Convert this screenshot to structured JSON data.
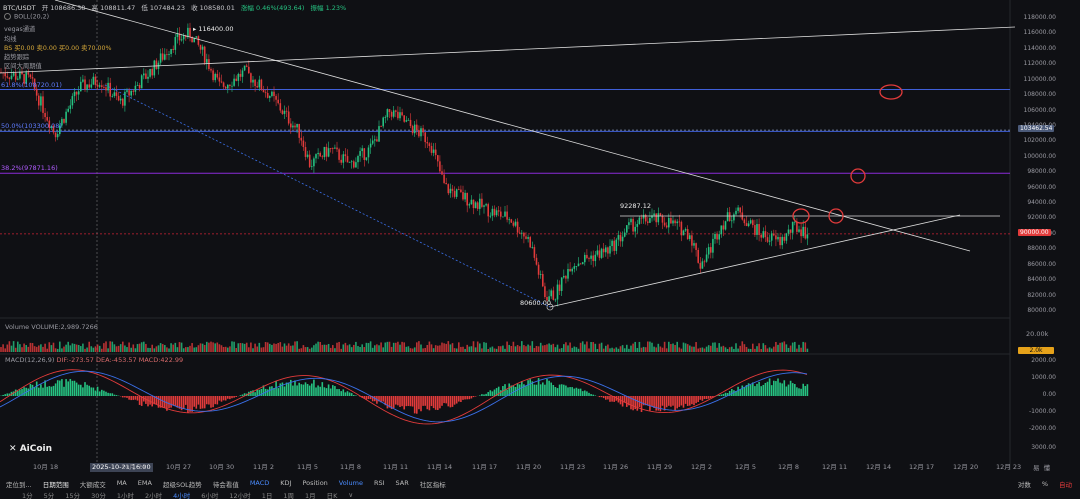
{
  "header": {
    "symbol": "BTC/USDT",
    "open": "开 108686.38",
    "high": "高 108811.47",
    "low": "低 107484.23",
    "close": "收 108580.01",
    "change": "涨幅 0.46%(493.64)",
    "amplitude": "振幅 1.23%"
  },
  "indicators": [
    "BOLL(20,2)",
    "vegas通道",
    "均线",
    "BS 买0.00 卖0.00 买0.00 卖70.00%",
    "趋势跟踪",
    "区间大周期值"
  ],
  "fib_levels": [
    {
      "label": "61.8%(108720.01)",
      "price": 108720,
      "color": "#3f5fd8"
    },
    {
      "label": "50.0%(103300.08)",
      "price": 103300,
      "color": "#3f5fd8"
    },
    {
      "label": "38.2%(97871.16)",
      "price": 97871,
      "color": "#8a2bd8"
    }
  ],
  "annotations": {
    "high_label": "116400.00",
    "low_label": "80600.00",
    "mid_label": "92287.12"
  },
  "y_axis": [
    "118000.00",
    "116000.00",
    "114000.00",
    "112000.00",
    "110000.00",
    "108000.00",
    "106000.00",
    "104000.00",
    "102000.00",
    "100000.00",
    "98000.00",
    "96000.00",
    "94000.00",
    "92000.00",
    "90000.00",
    "88000.00",
    "86000.00",
    "84000.00",
    "82000.00",
    "80000.00"
  ],
  "price_tags": {
    "current": "103462.54",
    "last": "90000.00",
    "volume": "2.0k"
  },
  "volume_panel": {
    "label": "Volume  VOLUME:2,989.7266",
    "scale": "20.00k"
  },
  "macd_panel": {
    "label": "MACD(12,26,9)",
    "values": "DIF:-273.57  DEA:-453.57  MACD:422.99",
    "y_axis": [
      "2000.00",
      "1000.00",
      "0.00",
      "-1000.00",
      "-2000.00",
      "3000.00"
    ]
  },
  "x_axis": [
    "10月 18",
    "2025-10-21 16:00",
    "10月 24",
    "10月 27",
    "10月 30",
    "11月 2",
    "11月 5",
    "11月 8",
    "11月 11",
    "11月 14",
    "11月 17",
    "11月 20",
    "11月 23",
    "11月 26",
    "11月 29",
    "12月 2",
    "12月 5",
    "12月 8",
    "12月 11",
    "12月 14",
    "12月 17",
    "12月 20",
    "12月 23"
  ],
  "logo": "AiCoin",
  "bottom_left": [
    "定位到...",
    "日期范围"
  ],
  "bottom_tabs": [
    "大额成交",
    "MA",
    "EMA",
    "超级SOL趋势",
    "待会看值",
    "MACD",
    "KDJ",
    "Position",
    "Volume",
    "RSI",
    "SAR",
    "社区指标"
  ],
  "active_tab": "MACD",
  "axis_right_top": [
    "易",
    "懂"
  ],
  "axis_right_bottom": [
    "对数",
    "%",
    "自动"
  ],
  "bottom_periods": [
    "1分",
    "5分",
    "15分",
    "30分",
    "1小时",
    "2小时",
    "4小时",
    "6小时",
    "12小时",
    "1日",
    "1周",
    "1月",
    "日K",
    "∨"
  ]
}
